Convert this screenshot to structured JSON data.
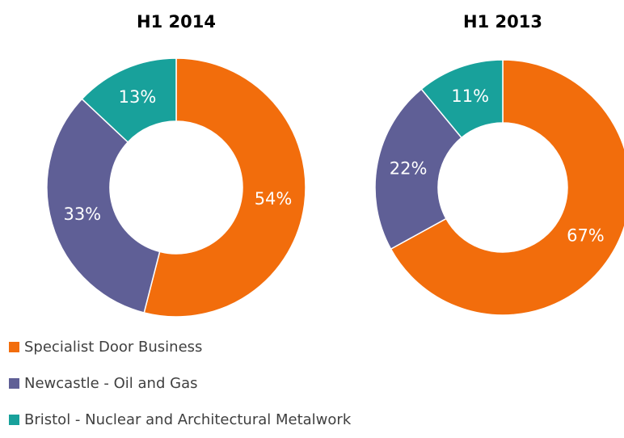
{
  "chart_data": [
    {
      "type": "donut",
      "title": "H1 2014",
      "values": [
        54,
        33,
        13
      ],
      "value_labels": [
        "54%",
        "33%",
        "13%"
      ]
    },
    {
      "type": "donut",
      "title": "H1 2013",
      "values": [
        67,
        22,
        11
      ],
      "value_labels": [
        "67%",
        "22%",
        "11%"
      ]
    }
  ],
  "legend": {
    "labels": [
      "Specialist Door Business",
      "Newcastle - Oil and Gas",
      "Bristol - Nuclear and Architectural Metalwork"
    ],
    "colors": [
      "#f26d0c",
      "#5f5f96",
      "#18a19b"
    ]
  }
}
